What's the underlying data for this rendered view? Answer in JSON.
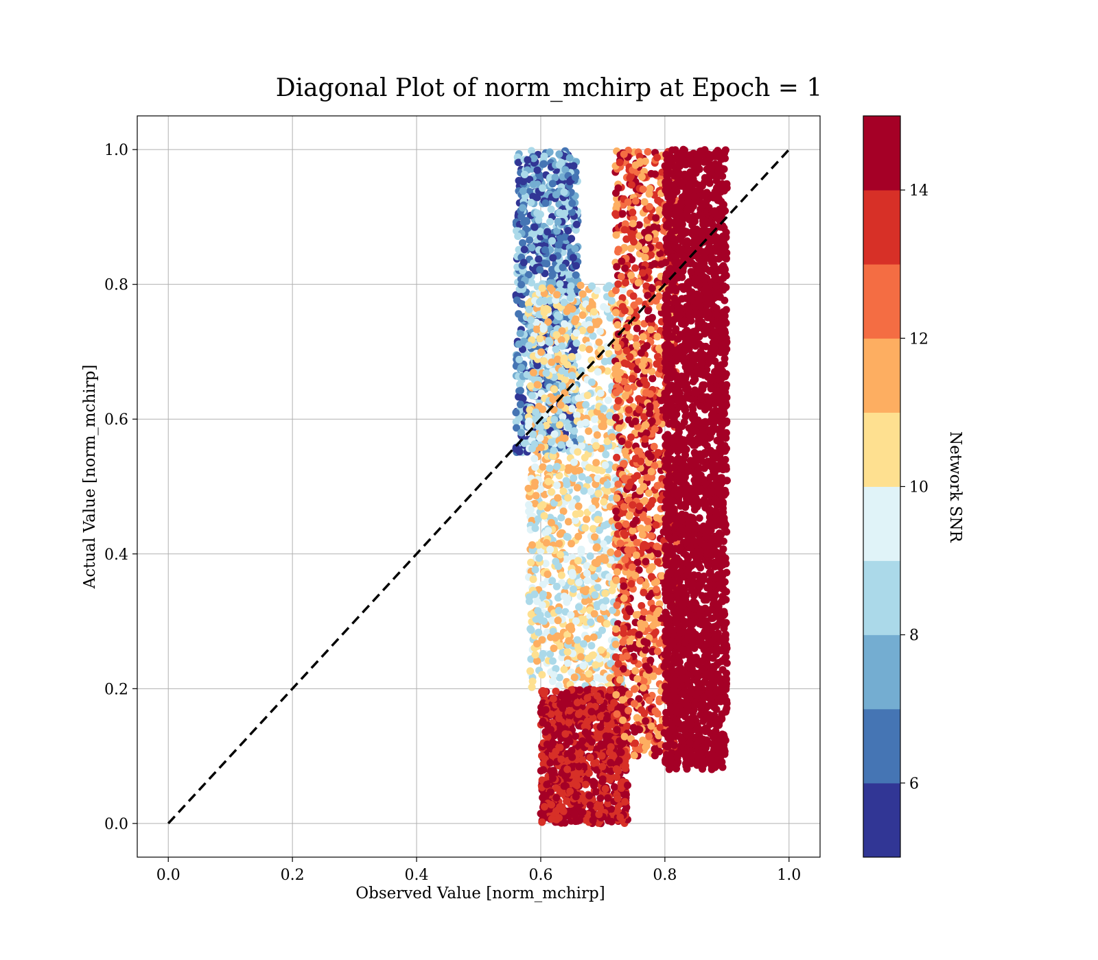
{
  "chart_data": {
    "type": "scatter",
    "title": "Diagonal Plot of norm_mchirp at Epoch = 1",
    "xlabel": "Observed Value [norm_mchirp]",
    "ylabel": "Actual Value [norm_mchirp]",
    "xlim": [
      -0.05,
      1.05
    ],
    "ylim": [
      -0.05,
      1.05
    ],
    "xticks": [
      "0.0",
      "0.2",
      "0.4",
      "0.6",
      "0.8",
      "1.0"
    ],
    "yticks": [
      "0.0",
      "0.2",
      "0.4",
      "0.6",
      "0.8",
      "1.0"
    ],
    "grid": true,
    "reference_line": {
      "from": [
        0,
        0
      ],
      "to": [
        1,
        1
      ],
      "style": "dashed",
      "color": "#000000"
    },
    "colorbar": {
      "label": "Network SNR",
      "range": [
        5,
        15
      ],
      "ticks": [
        "6",
        "8",
        "10",
        "12",
        "14"
      ],
      "colors": [
        "#313695",
        "#4575b4",
        "#74add1",
        "#abd9e9",
        "#e0f3f8",
        "#fee090",
        "#fdae61",
        "#f46d43",
        "#d73027",
        "#a50026"
      ]
    },
    "point_clusters": [
      {
        "x_range": [
          0.56,
          0.66
        ],
        "y_range": [
          0.55,
          1.0
        ],
        "snr_range": [
          5,
          9
        ],
        "count": 900
      },
      {
        "x_range": [
          0.58,
          0.74
        ],
        "y_range": [
          0.2,
          0.8
        ],
        "snr_range": [
          8,
          12
        ],
        "count": 1200
      },
      {
        "x_range": [
          0.6,
          0.74
        ],
        "y_range": [
          0.0,
          0.2
        ],
        "snr_range": [
          13,
          15
        ],
        "count": 900
      },
      {
        "x_range": [
          0.72,
          0.82
        ],
        "y_range": [
          0.1,
          1.0
        ],
        "snr_range": [
          11,
          15
        ],
        "count": 1300
      },
      {
        "x_range": [
          0.8,
          0.9
        ],
        "y_range": [
          0.08,
          1.0
        ],
        "snr_range": [
          14,
          15
        ],
        "count": 2600
      }
    ]
  }
}
